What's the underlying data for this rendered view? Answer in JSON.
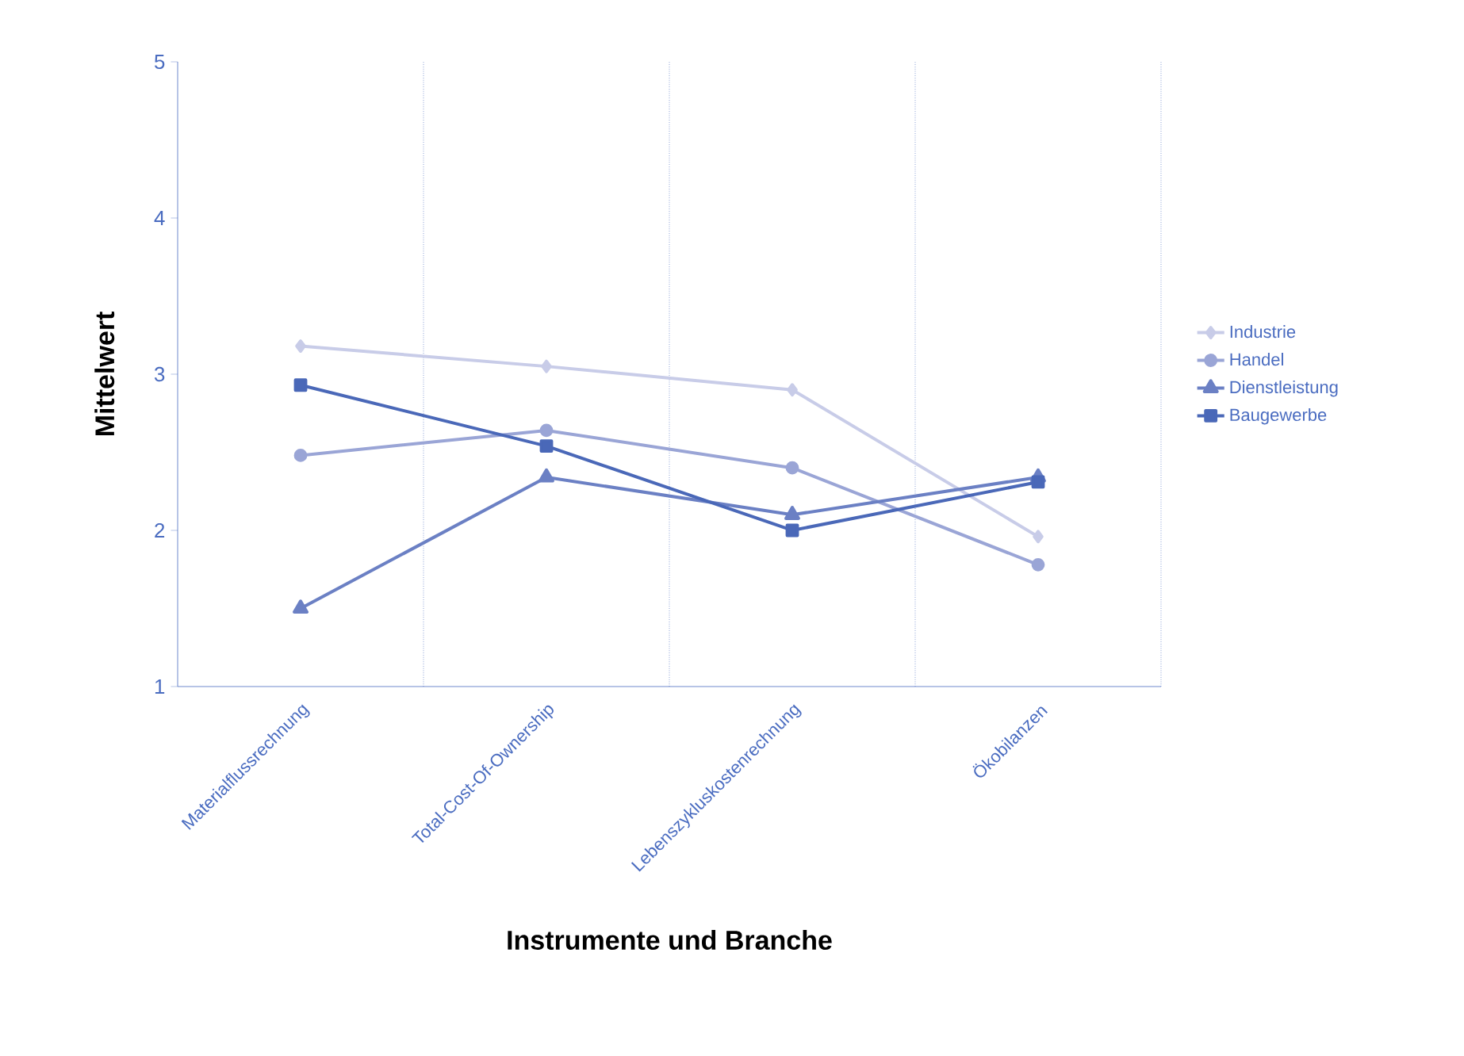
{
  "chart_data": {
    "type": "line",
    "xlabel": "Instrumente und Branche",
    "ylabel": "Mittelwert",
    "categories": [
      "Materialflussrechnung",
      "Total-Cost-Of-Ownership",
      "Lebenszykluskostenrechnung",
      "Ökobilanzen"
    ],
    "ylim": [
      1,
      5
    ],
    "yticks": [
      1,
      2,
      3,
      4,
      5
    ],
    "grid": "x",
    "legend": "right",
    "series": [
      {
        "name": "Industrie",
        "color": "#c8cce8",
        "marker": "diamond",
        "values": [
          3.18,
          3.05,
          2.9,
          1.96
        ]
      },
      {
        "name": "Handel",
        "color": "#9aa5d6",
        "marker": "circle",
        "values": [
          2.48,
          2.64,
          2.4,
          1.78
        ]
      },
      {
        "name": "Dienstleistung",
        "color": "#6b80c4",
        "marker": "triangle",
        "values": [
          1.5,
          2.34,
          2.1,
          2.34
        ]
      },
      {
        "name": "Baugewerbe",
        "color": "#4a68b8",
        "marker": "square",
        "values": [
          2.93,
          2.54,
          2.0,
          2.31
        ]
      }
    ]
  }
}
